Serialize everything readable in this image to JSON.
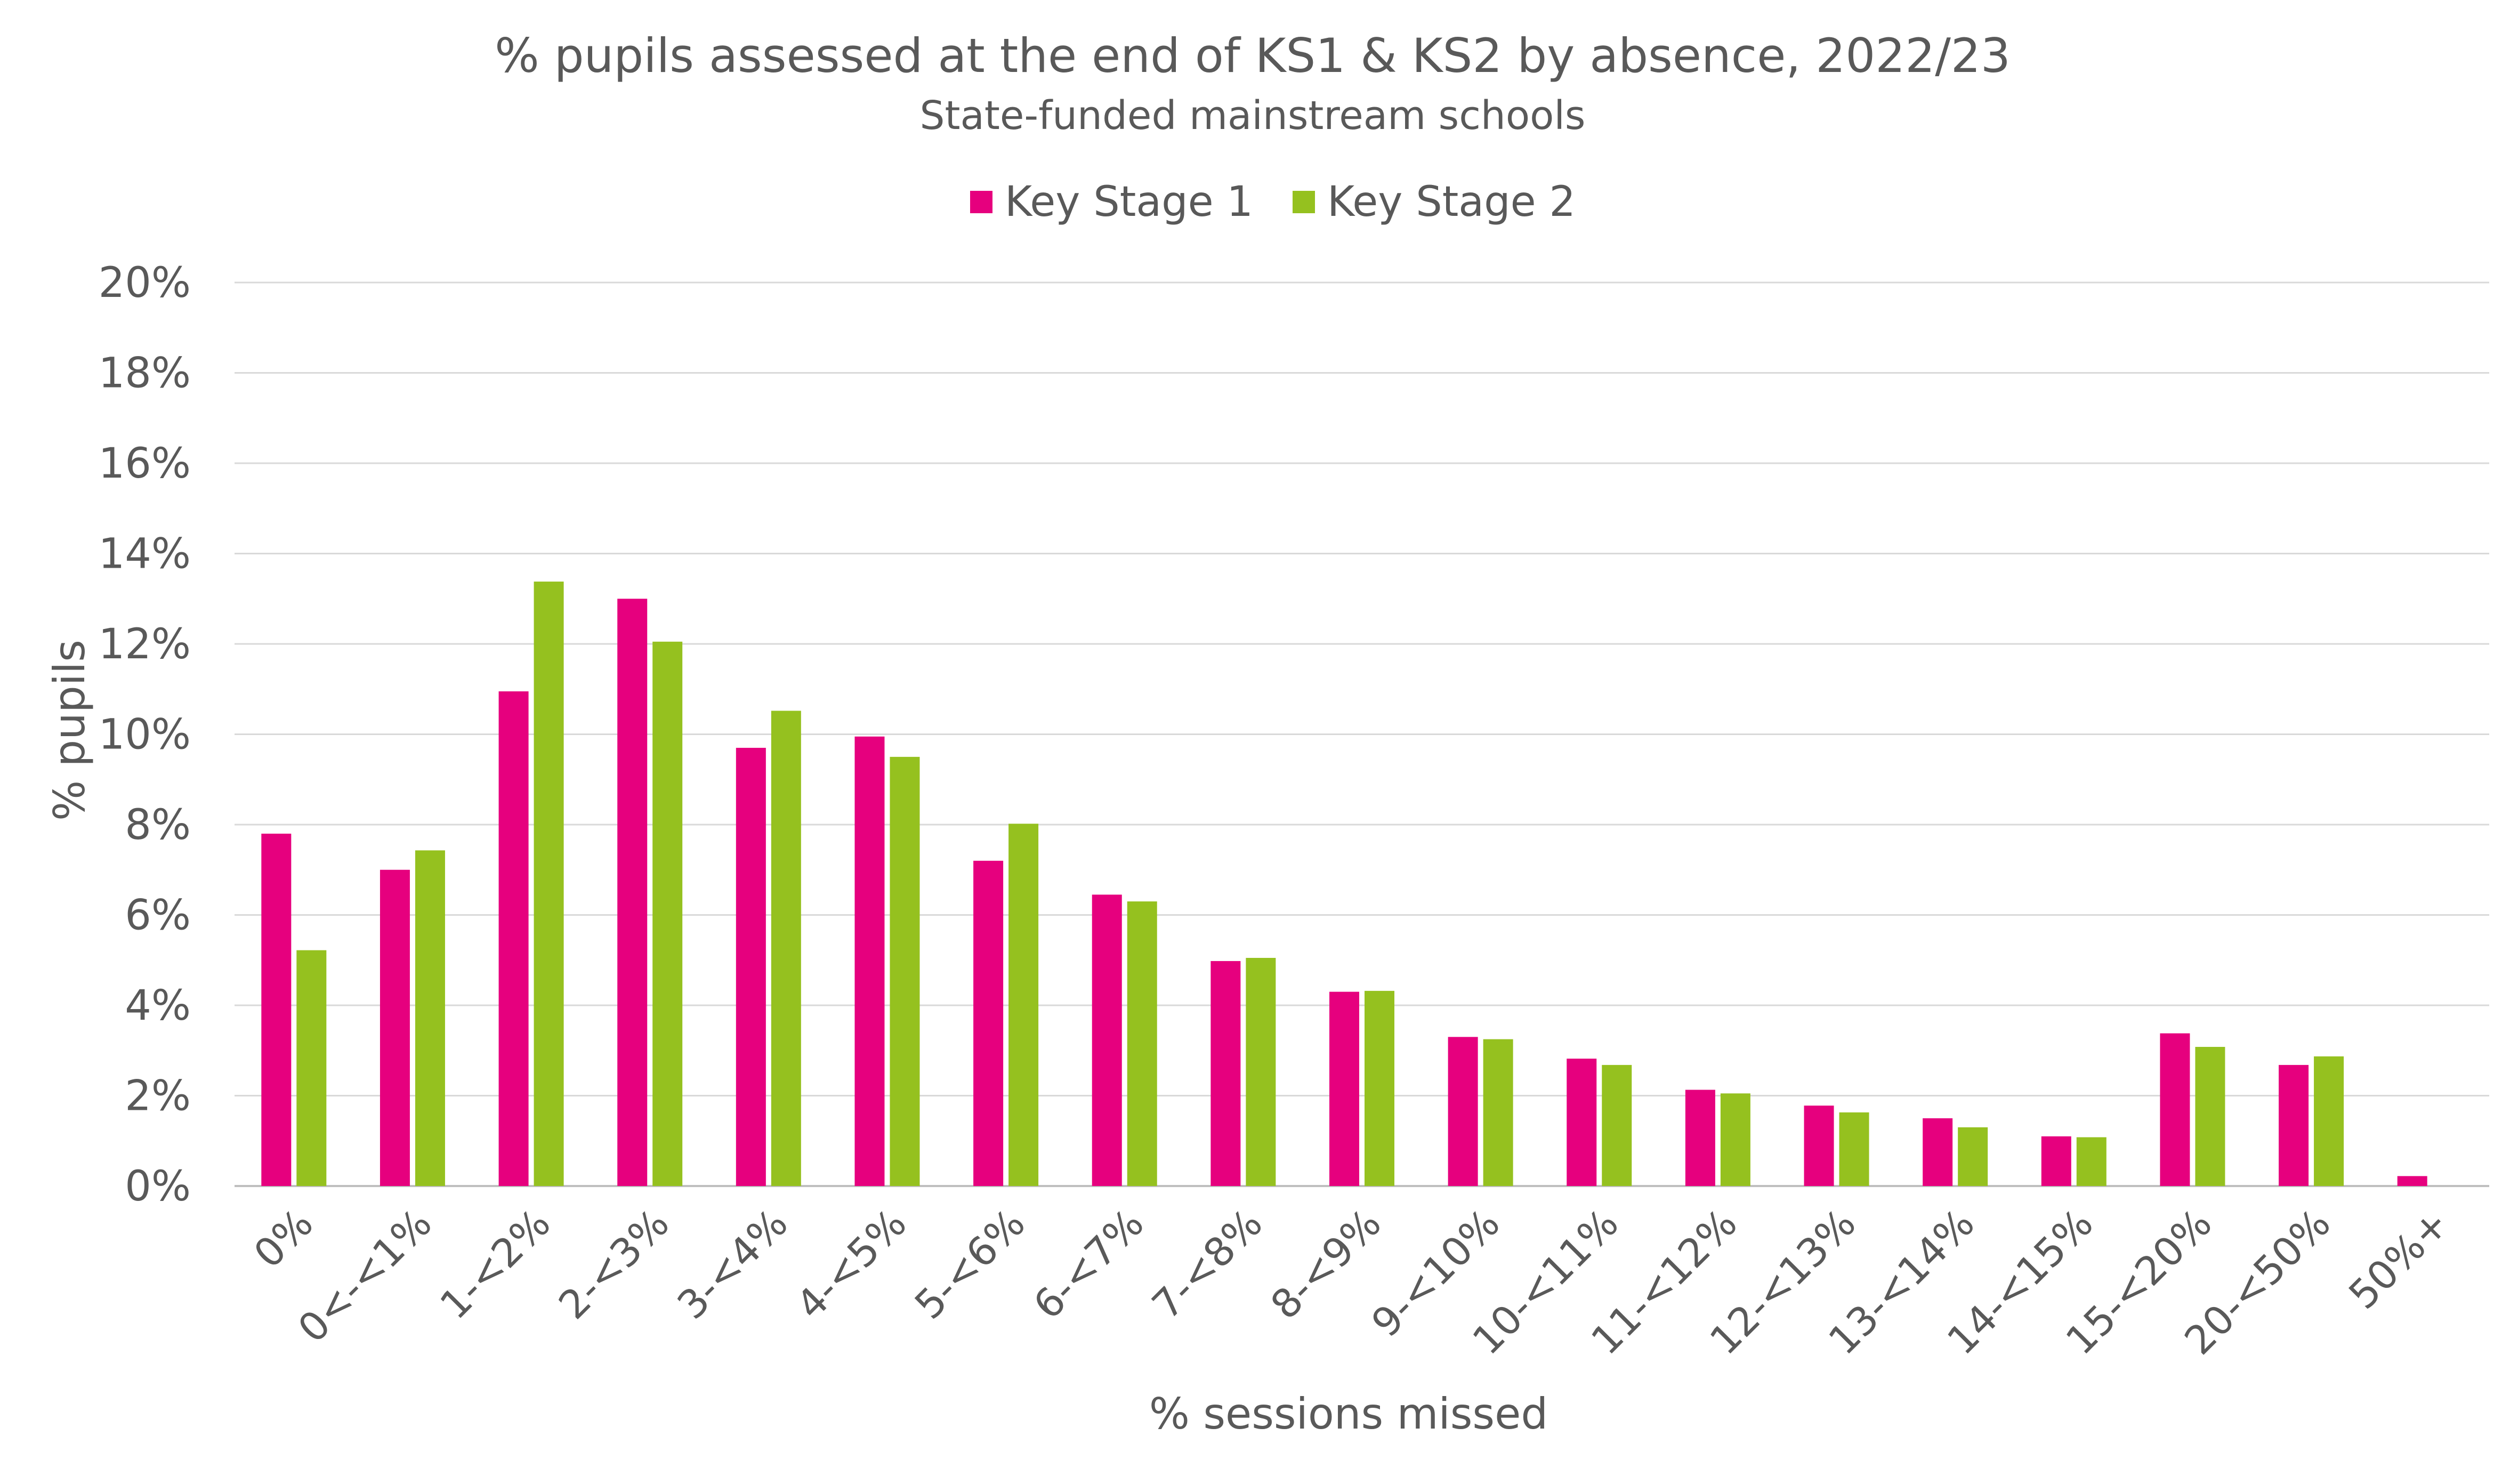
{
  "chart_data": {
    "type": "bar",
    "title": "% pupils assessed at the end of KS1 & KS2 by absence, 2022/23",
    "subtitle": "State-funded mainstream schools",
    "xlabel": "% sessions missed",
    "ylabel": "% pupils",
    "ylim": [
      0,
      20
    ],
    "ytick_step": 2,
    "ytick_labels": [
      "0%",
      "2%",
      "4%",
      "6%",
      "8%",
      "10%",
      "12%",
      "14%",
      "16%",
      "18%",
      "20%"
    ],
    "grid": true,
    "legend_position": "top-center",
    "categories": [
      "0%",
      "0<-<1%",
      "1-<2%",
      "2-<3%",
      "3-<4%",
      "4-<5%",
      "5-<6%",
      "6-<7%",
      "7-<8%",
      "8-<9%",
      "9-<10%",
      "10-<11%",
      "11-<12%",
      "12-<13%",
      "13-<14%",
      "14-<15%",
      "15-<20%",
      "20-<50%",
      "50%+"
    ],
    "series": [
      {
        "name": "Key Stage 1",
        "color": "#E6007E",
        "values": [
          7.8,
          7.0,
          10.95,
          13.0,
          9.7,
          9.95,
          7.2,
          6.45,
          4.98,
          4.3,
          3.3,
          2.82,
          2.13,
          1.78,
          1.5,
          1.1,
          3.38,
          2.68,
          0.22
        ]
      },
      {
        "name": "Key Stage 2",
        "color": "#95C11F",
        "values": [
          5.22,
          7.43,
          13.38,
          12.05,
          10.52,
          9.5,
          8.02,
          6.3,
          5.05,
          4.32,
          3.25,
          2.68,
          2.05,
          1.63,
          1.3,
          1.08,
          3.08,
          2.87,
          0
        ]
      }
    ]
  }
}
